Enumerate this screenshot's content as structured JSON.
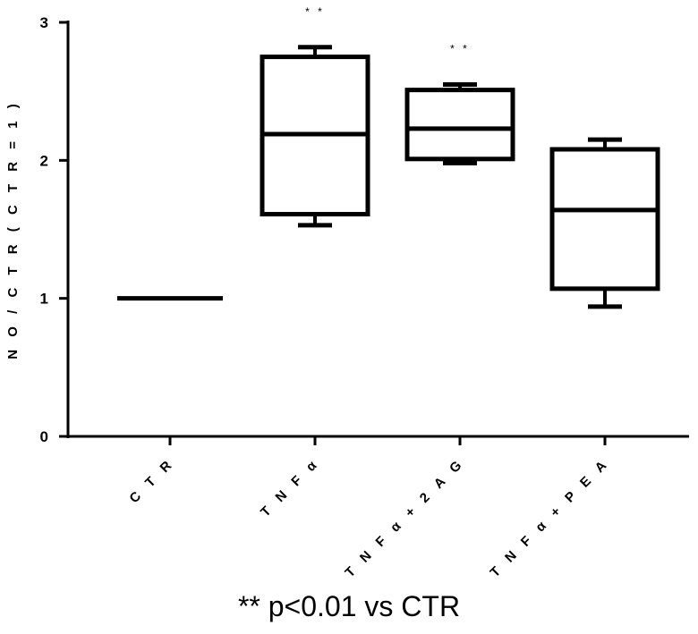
{
  "chart_data": {
    "type": "box",
    "ylabel": "N O / C T R  ( C T R = 1 )",
    "xlabel": "",
    "ylim": [
      0,
      3
    ],
    "yticks": [
      "0",
      "1",
      "2",
      "3"
    ],
    "categories": [
      "C T R",
      "T N F α",
      "T N F α + 2 A G",
      "T N F α + P E A"
    ],
    "boxes": [
      {
        "min": 1.0,
        "q1": 1.0,
        "median": 1.0,
        "q3": 1.0,
        "max": 1.0,
        "annotation": ""
      },
      {
        "min": 1.53,
        "q1": 1.61,
        "median": 2.19,
        "q3": 2.75,
        "max": 2.82,
        "annotation": "* *"
      },
      {
        "min": 1.98,
        "q1": 2.01,
        "median": 2.23,
        "q3": 2.51,
        "max": 2.55,
        "annotation": "* *"
      },
      {
        "min": 0.94,
        "q1": 1.07,
        "median": 1.64,
        "q3": 2.08,
        "max": 2.15,
        "annotation": ""
      }
    ],
    "grid": false,
    "color": "#000000"
  },
  "footnote": "** p<0.01 vs CTR"
}
